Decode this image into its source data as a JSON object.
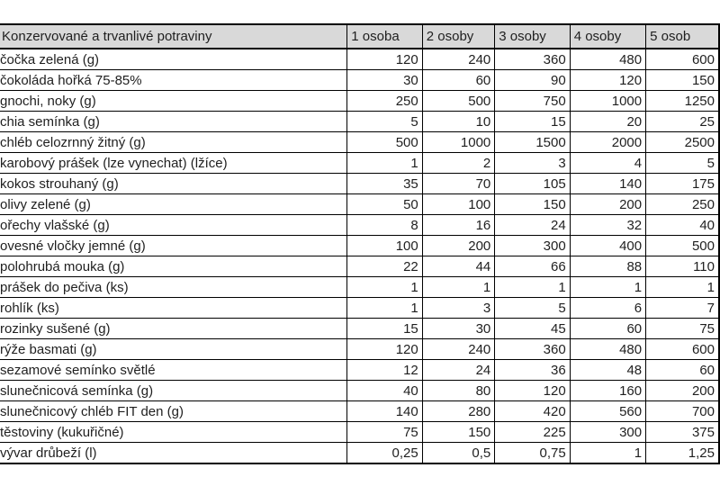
{
  "table": {
    "category_header": "Konzervované a trvanlivé potraviny",
    "person_columns": [
      "1 osoba",
      "2 osoby",
      "3 osoby",
      "4 osoby",
      "5 osob"
    ],
    "rows": [
      {
        "item": "čočka zelená (g)",
        "values": [
          "120",
          "240",
          "360",
          "480",
          "600"
        ]
      },
      {
        "item": "čokoláda hořká 75-85%",
        "values": [
          "30",
          "60",
          "90",
          "120",
          "150"
        ]
      },
      {
        "item": "gnochi, noky (g)",
        "values": [
          "250",
          "500",
          "750",
          "1000",
          "1250"
        ]
      },
      {
        "item": "chia semínka (g)",
        "values": [
          "5",
          "10",
          "15",
          "20",
          "25"
        ]
      },
      {
        "item": "chléb celozrnný žitný (g)",
        "values": [
          "500",
          "1000",
          "1500",
          "2000",
          "2500"
        ]
      },
      {
        "item": "karobový prášek (lze vynechat) (lžíce)",
        "values": [
          "1",
          "2",
          "3",
          "4",
          "5"
        ]
      },
      {
        "item": "kokos strouhaný (g)",
        "values": [
          "35",
          "70",
          "105",
          "140",
          "175"
        ]
      },
      {
        "item": "olivy zelené (g)",
        "values": [
          "50",
          "100",
          "150",
          "200",
          "250"
        ]
      },
      {
        "item": "ořechy vlašské (g)",
        "values": [
          "8",
          "16",
          "24",
          "32",
          "40"
        ]
      },
      {
        "item": "ovesné vločky jemné (g)",
        "values": [
          "100",
          "200",
          "300",
          "400",
          "500"
        ]
      },
      {
        "item": "polohrubá mouka (g)",
        "values": [
          "22",
          "44",
          "66",
          "88",
          "110"
        ]
      },
      {
        "item": "prášek do pečiva (ks)",
        "values": [
          "1",
          "1",
          "1",
          "1",
          "1"
        ]
      },
      {
        "item": "rohlík (ks)",
        "values": [
          "1",
          "3",
          "5",
          "6",
          "7"
        ]
      },
      {
        "item": "rozinky sušené (g)",
        "values": [
          "15",
          "30",
          "45",
          "60",
          "75"
        ]
      },
      {
        "item": "rýže basmati (g)",
        "values": [
          "120",
          "240",
          "360",
          "480",
          "600"
        ]
      },
      {
        "item": "sezamové semínko světlé",
        "values": [
          "12",
          "24",
          "36",
          "48",
          "60"
        ]
      },
      {
        "item": "slunečnicová semínka (g)",
        "values": [
          "40",
          "80",
          "120",
          "160",
          "200"
        ]
      },
      {
        "item": "slunečnicový chléb FIT den (g)",
        "values": [
          "140",
          "280",
          "420",
          "560",
          "700"
        ]
      },
      {
        "item": "těstoviny (kukuřičné)",
        "values": [
          "75",
          "150",
          "225",
          "300",
          "375"
        ]
      },
      {
        "item": "vývar drůbeží (l)",
        "values": [
          "0,25",
          "0,5",
          "0,75",
          "1",
          "1,25"
        ]
      }
    ]
  },
  "colors": {
    "header_bg": "#d9d9d9",
    "border": "#000000",
    "text": "#1f1f1f",
    "background": "#ffffff"
  }
}
